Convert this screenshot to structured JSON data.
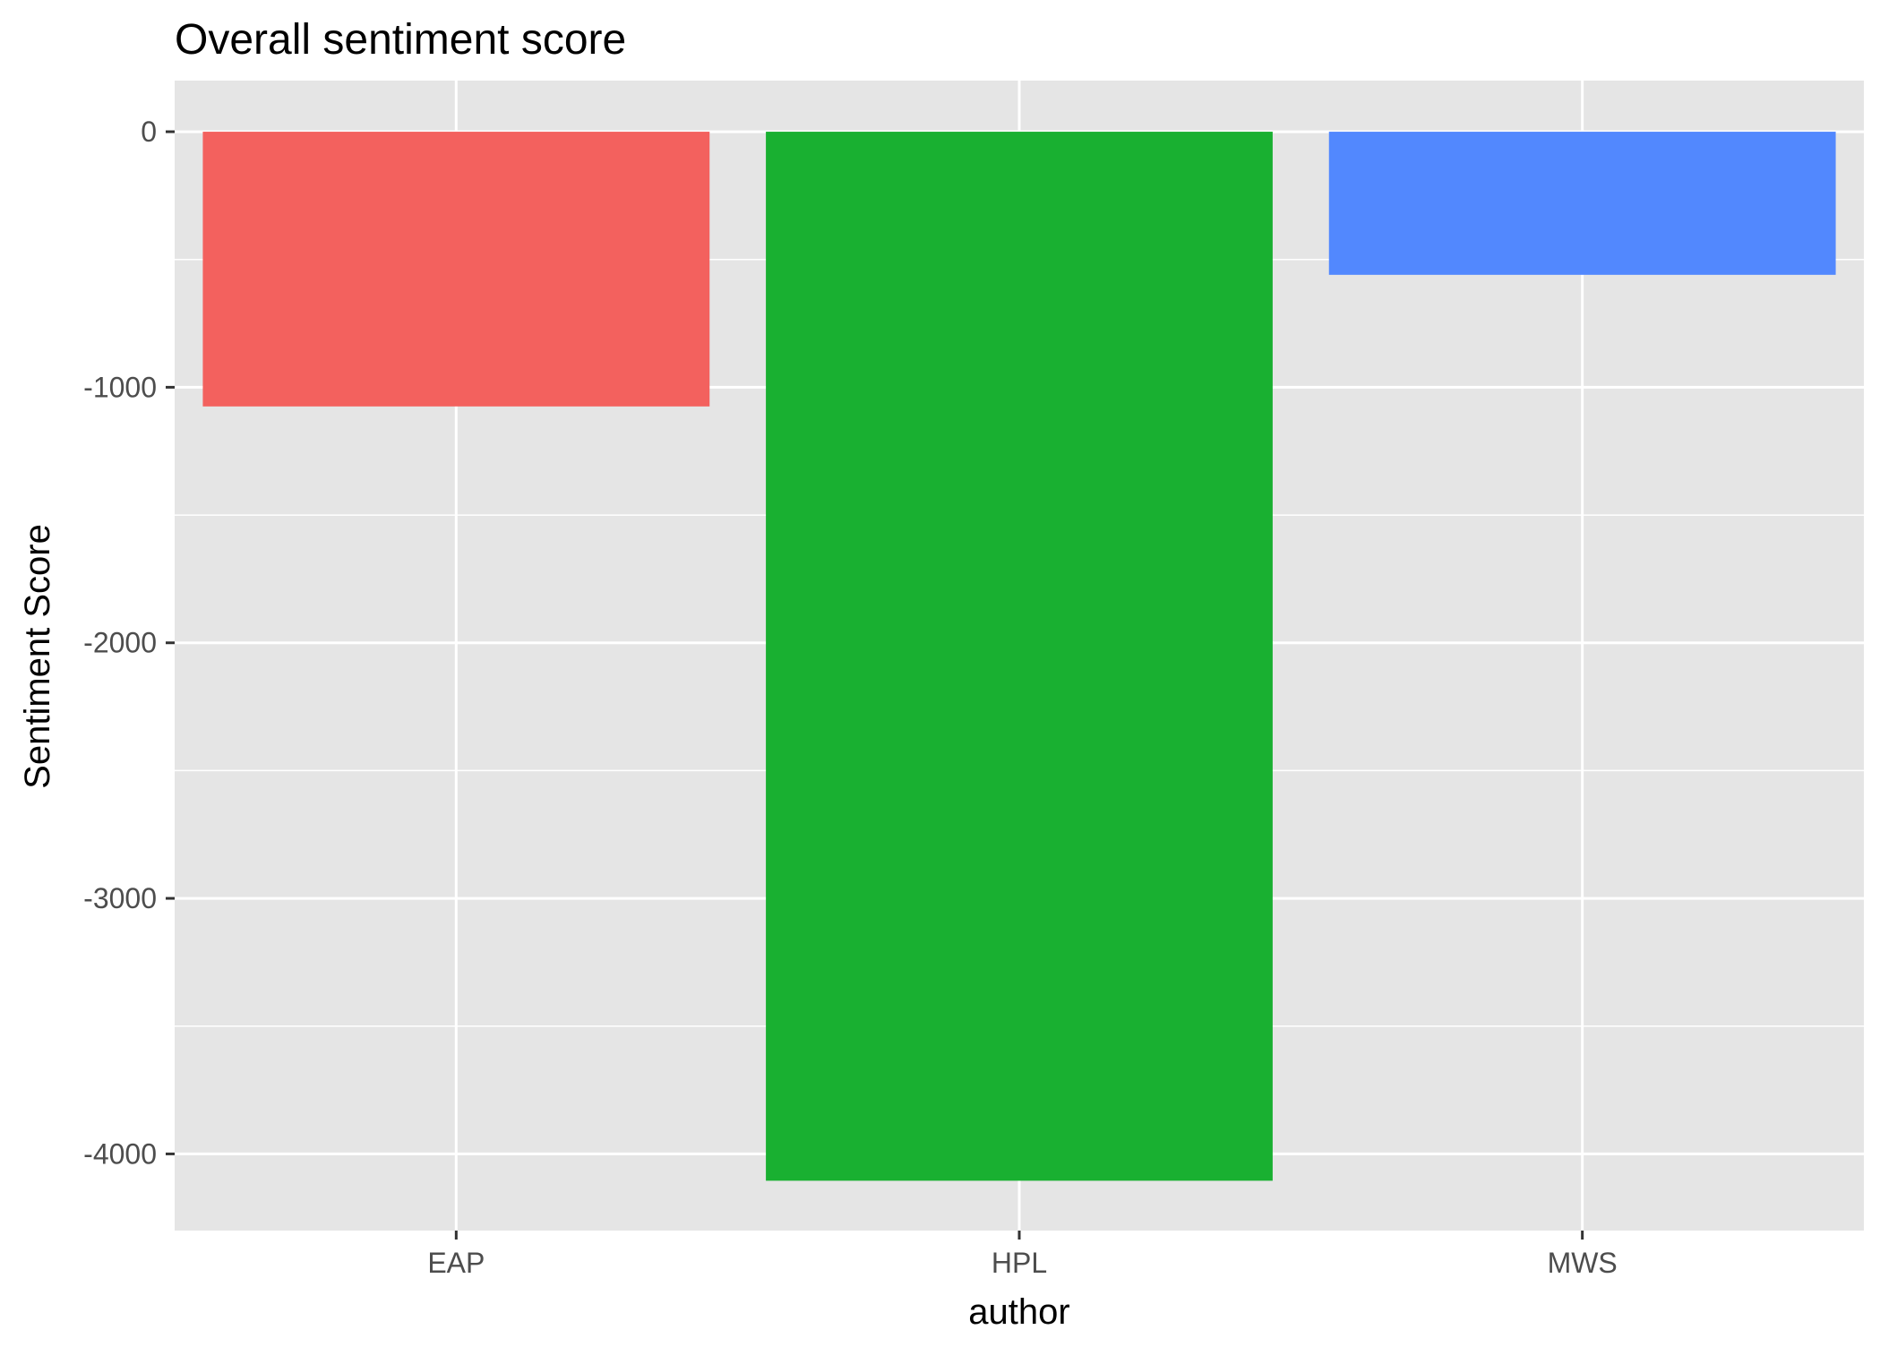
{
  "chart_data": {
    "type": "bar",
    "title": "Overall sentiment score",
    "xlabel": "author",
    "ylabel": "Sentiment Score",
    "categories": [
      "EAP",
      "HPL",
      "MWS"
    ],
    "values": [
      -1075,
      -4105,
      -560
    ],
    "colors": [
      "#F3615E",
      "#19B031",
      "#5288FE"
    ],
    "ylim": [
      -4300,
      200
    ],
    "yticks": [
      0,
      -1000,
      -2000,
      -3000,
      -4000
    ],
    "ytick_labels": [
      "0",
      "-1000",
      "-2000",
      "-3000",
      "-4000"
    ],
    "grid": true,
    "legend": "none",
    "panel_background": "#E5E5E5",
    "grid_color": "#FFFFFF"
  }
}
